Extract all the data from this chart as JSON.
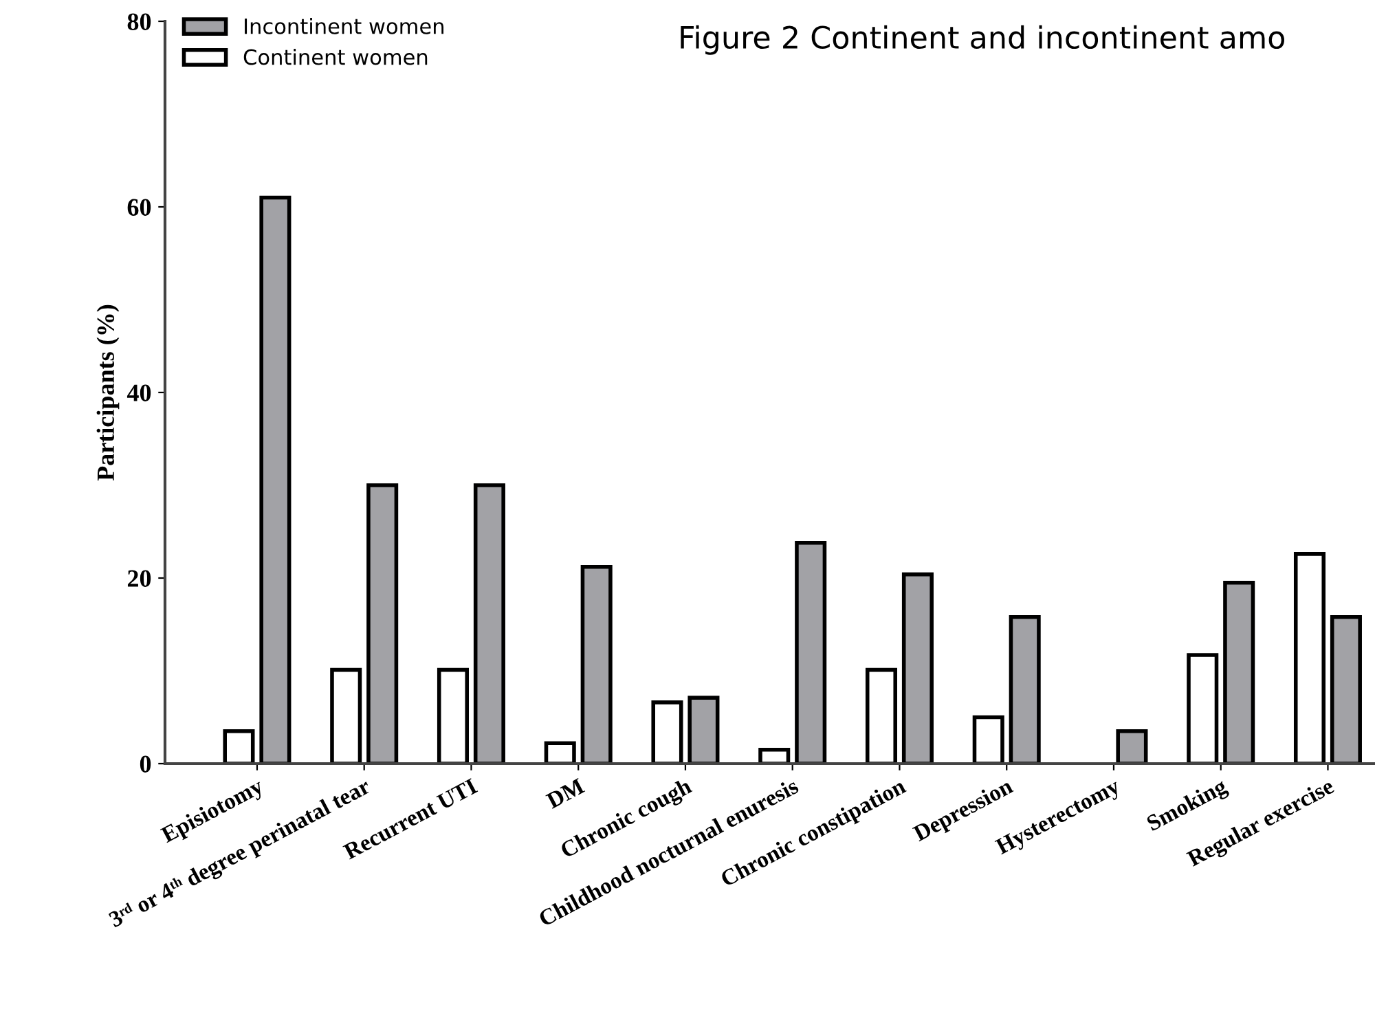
{
  "chart_data": {
    "type": "bar",
    "title": "Figure 2 Continent and incontinent amo",
    "ylabel": "Participants (%)",
    "categories": [
      "Episiotomy",
      "3ʳᵈ or 4ᵗʰ degree perinatal tear",
      "Recurrent UTI",
      "DM",
      "Chronic cough",
      "Childhood nocturnal enuresis",
      "Chronic constipation",
      "Depression",
      "Hysterectomy",
      "Smoking",
      "Regular exercise"
    ],
    "series": [
      {
        "name": "Continent women",
        "color": "#ffffff",
        "values": [
          3.5,
          10.1,
          10.1,
          2.2,
          6.6,
          1.5,
          10.1,
          5.0,
          null,
          11.7,
          22.6
        ]
      },
      {
        "name": "Incontinent women",
        "color": "#a2a2a6",
        "values": [
          61,
          30.0,
          30.0,
          21.2,
          7.1,
          23.8,
          20.4,
          15.8,
          3.5,
          19.5,
          15.8
        ]
      }
    ],
    "ylim": [
      0,
      80
    ],
    "yticks": [
      0,
      20,
      40,
      60,
      80
    ],
    "grid": false,
    "legend": "top left"
  }
}
